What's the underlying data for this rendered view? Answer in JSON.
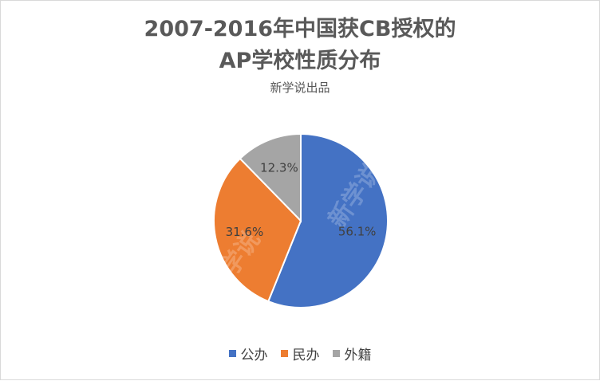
{
  "chart_data": {
    "type": "pie",
    "title_line1": "2007-2016年中国获CB授权的",
    "title_line2": "AP学校性质分布",
    "subtitle": "新学说出品",
    "slices": [
      {
        "label": "公办",
        "value": 56.1,
        "display": "56.1%",
        "color": "#4472C4"
      },
      {
        "label": "民办",
        "value": 31.6,
        "display": "31.6%",
        "color": "#ED7D31"
      },
      {
        "label": "外籍",
        "value": 12.3,
        "display": "12.3%",
        "color": "#A5A5A5"
      }
    ],
    "legend_position": "bottom",
    "watermark": "新学说"
  }
}
